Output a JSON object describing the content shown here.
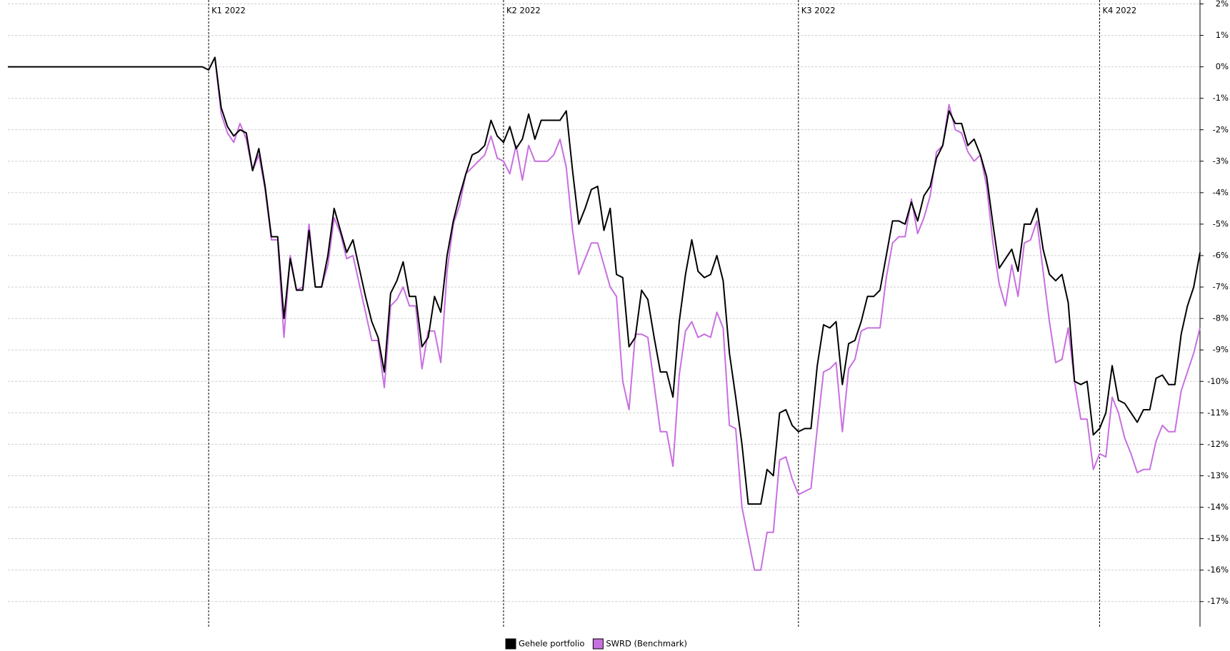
{
  "chart_data": {
    "type": "line",
    "categories": [
      null,
      null,
      null,
      null,
      null,
      null,
      null,
      null,
      null,
      null,
      null,
      null,
      null,
      null,
      null,
      null,
      null,
      null,
      null,
      null,
      null,
      null,
      null,
      null,
      null,
      null,
      null,
      null,
      null,
      null,
      null,
      null,
      "K1 2022",
      null,
      null,
      null,
      null,
      null,
      null,
      null,
      null,
      null,
      null,
      null,
      null,
      null,
      null,
      null,
      null,
      null,
      null,
      null,
      null,
      null,
      null,
      null,
      null,
      null,
      null,
      null,
      null,
      null,
      null,
      null,
      null,
      null,
      null,
      null,
      null,
      null,
      null,
      null,
      null,
      null,
      null,
      null,
      null,
      null,
      null,
      "K2 2022",
      null,
      null,
      null,
      null,
      null,
      null,
      null,
      null,
      null,
      null,
      null,
      null,
      null,
      null,
      null,
      null,
      null,
      null,
      null,
      null,
      null,
      null,
      null,
      null,
      null,
      null,
      null,
      null,
      null,
      null,
      null,
      null,
      null,
      null,
      null,
      null,
      null,
      null,
      null,
      null,
      null,
      null,
      null,
      null,
      null,
      null,
      "K3 2022",
      null,
      null,
      null,
      null,
      null,
      null,
      null,
      null,
      null,
      null,
      null,
      null,
      null,
      null,
      null,
      null,
      null,
      null,
      null,
      null,
      null,
      null,
      null,
      null,
      null,
      null,
      null,
      null,
      null,
      null,
      null,
      null,
      null,
      null,
      null,
      null,
      null,
      null,
      null,
      null,
      null,
      null,
      null,
      null,
      null,
      null,
      null,
      "K4 2022",
      null,
      null,
      null,
      null,
      null,
      null,
      null,
      null,
      null,
      null,
      null,
      null,
      null,
      null,
      null,
      null
    ],
    "series": [
      {
        "name": "Gehele portfolio",
        "color": "#000000",
        "values": [
          0,
          0,
          0,
          0,
          0,
          0,
          0,
          0,
          0,
          0,
          0,
          0,
          0,
          0,
          0,
          0,
          0,
          0,
          0,
          0,
          0,
          0,
          0,
          0,
          0,
          0,
          0,
          0,
          0,
          0,
          0,
          0,
          -0.1,
          0.3,
          -1.3,
          -1.9,
          -2.2,
          -2.0,
          -2.1,
          -3.3,
          -2.6,
          -3.8,
          -5.4,
          -5.4,
          -8.0,
          -6.1,
          -7.1,
          -7.1,
          -5.2,
          -7.0,
          -7.0,
          -6.0,
          -4.5,
          -5.2,
          -5.9,
          -5.5,
          -6.4,
          -7.3,
          -8.1,
          -8.6,
          -9.7,
          -7.2,
          -6.8,
          -6.2,
          -7.3,
          -7.3,
          -8.9,
          -8.6,
          -7.3,
          -7.8,
          -6.0,
          -4.9,
          -4.1,
          -3.4,
          -2.8,
          -2.7,
          -2.5,
          -1.7,
          -2.2,
          -2.4,
          -1.9,
          -2.6,
          -2.3,
          -1.5,
          -2.3,
          -1.7,
          -1.7,
          -1.7,
          -1.7,
          -1.4,
          -3.3,
          -5.0,
          -4.5,
          -3.9,
          -3.8,
          -5.2,
          -4.5,
          -6.6,
          -6.7,
          -8.9,
          -8.6,
          -7.1,
          -7.4,
          -8.6,
          -9.7,
          -9.7,
          -10.5,
          -8.1,
          -6.6,
          -5.5,
          -6.5,
          -6.7,
          -6.6,
          -6.0,
          -6.8,
          -9.1,
          -10.5,
          -12.0,
          -13.9,
          -13.9,
          -13.9,
          -12.8,
          -13.0,
          -11.0,
          -10.9,
          -11.4,
          -11.6,
          -11.5,
          -11.5,
          -9.5,
          -8.2,
          -8.3,
          -8.1,
          -10.1,
          -8.8,
          -8.7,
          -8.1,
          -7.3,
          -7.3,
          -7.1,
          -6.0,
          -4.9,
          -4.9,
          -5.0,
          -4.3,
          -4.9,
          -4.1,
          -3.8,
          -2.9,
          -2.5,
          -1.4,
          -1.8,
          -1.8,
          -2.5,
          -2.3,
          -2.8,
          -3.5,
          -5.0,
          -6.4,
          -6.1,
          -5.8,
          -6.5,
          -5.0,
          -5.0,
          -4.5,
          -5.8,
          -6.6,
          -6.8,
          -6.6,
          -7.5,
          -10.0,
          -10.1,
          -10.0,
          -11.7,
          -11.5,
          -11.0,
          -9.5,
          -10.6,
          -10.7,
          -11.0,
          -11.3,
          -10.9,
          -10.9,
          -9.9,
          -9.8,
          -10.1,
          -10.1,
          -8.5,
          -7.6,
          -7.0,
          -5.9
        ]
      },
      {
        "name": "SWRD (Benchmark)",
        "color": "#c86fe0",
        "values": [
          null,
          null,
          null,
          null,
          null,
          null,
          null,
          null,
          null,
          null,
          null,
          null,
          null,
          null,
          null,
          null,
          null,
          null,
          null,
          null,
          null,
          null,
          null,
          null,
          null,
          null,
          null,
          null,
          null,
          null,
          null,
          null,
          -0.1,
          0.3,
          -1.5,
          -2.1,
          -2.4,
          -1.8,
          -2.3,
          -3.3,
          -2.8,
          -3.9,
          -5.5,
          -5.5,
          -8.6,
          -6.0,
          -7.1,
          -7.0,
          -5.0,
          -7.0,
          -7.0,
          -6.3,
          -4.8,
          -5.3,
          -6.1,
          -6.0,
          -6.9,
          -7.8,
          -8.7,
          -8.7,
          -10.2,
          -7.6,
          -7.4,
          -7.0,
          -7.6,
          -7.6,
          -9.6,
          -8.4,
          -8.4,
          -9.4,
          -6.5,
          -5.0,
          -4.4,
          -3.4,
          -3.2,
          -3.0,
          -2.8,
          -2.2,
          -2.9,
          -3.0,
          -3.4,
          -2.5,
          -3.6,
          -2.5,
          -3.0,
          -3.0,
          -3.0,
          -2.8,
          -2.3,
          -3.2,
          -5.2,
          -6.6,
          -6.1,
          -5.6,
          -5.6,
          -6.3,
          -7.0,
          -7.3,
          -10.0,
          -10.9,
          -8.5,
          -8.5,
          -8.6,
          -10.1,
          -11.6,
          -11.6,
          -12.7,
          -9.8,
          -8.4,
          -8.1,
          -8.6,
          -8.5,
          -8.6,
          -7.8,
          -8.3,
          -11.4,
          -11.5,
          -14.0,
          -15.0,
          -16.0,
          -16.0,
          -14.8,
          -14.8,
          -12.5,
          -12.4,
          -13.1,
          -13.6,
          -13.5,
          -13.4,
          -11.5,
          -9.7,
          -9.6,
          -9.4,
          -11.6,
          -9.6,
          -9.3,
          -8.4,
          -8.3,
          -8.3,
          -8.3,
          -6.7,
          -5.6,
          -5.4,
          -5.4,
          -4.2,
          -5.3,
          -4.8,
          -4.1,
          -2.7,
          -2.5,
          -1.2,
          -2.0,
          -2.1,
          -2.7,
          -3.0,
          -2.8,
          -3.8,
          -5.6,
          -6.9,
          -7.6,
          -6.3,
          -7.3,
          -5.6,
          -5.5,
          -4.9,
          -6.5,
          -8.1,
          -9.4,
          -9.3,
          -8.3,
          -10.0,
          -11.2,
          -11.2,
          -12.8,
          -12.3,
          -12.4,
          -10.5,
          -11.0,
          -11.8,
          -12.3,
          -12.9,
          -12.8,
          -12.8,
          -11.9,
          -11.4,
          -11.6,
          -11.6,
          -10.3,
          -9.7,
          -9.1,
          -8.3
        ]
      }
    ],
    "ylim": [
      -17.8,
      2
    ],
    "yticks": [
      {
        "value": 2,
        "label": "2%"
      },
      {
        "value": 1,
        "label": "1%"
      },
      {
        "value": 0,
        "label": "0%"
      },
      {
        "value": -1,
        "label": "-1%"
      },
      {
        "value": -2,
        "label": "-2%"
      },
      {
        "value": -3,
        "label": "-3%"
      },
      {
        "value": -4,
        "label": "-4%"
      },
      {
        "value": -5,
        "label": "-5%"
      },
      {
        "value": -6,
        "label": "-6%"
      },
      {
        "value": -7,
        "label": "-7%"
      },
      {
        "value": -8,
        "label": "-8%"
      },
      {
        "value": -9,
        "label": "-9%"
      },
      {
        "value": -10,
        "label": "-10%"
      },
      {
        "value": -11,
        "label": "-11%"
      },
      {
        "value": -12,
        "label": "-12%"
      },
      {
        "value": -13,
        "label": "-13%"
      },
      {
        "value": -14,
        "label": "-14%"
      },
      {
        "value": -15,
        "label": "-15%"
      },
      {
        "value": -16,
        "label": "-16%"
      },
      {
        "value": -17,
        "label": "-17%"
      }
    ],
    "grid": true,
    "y_axis_side": "right",
    "legend": "bottom"
  }
}
